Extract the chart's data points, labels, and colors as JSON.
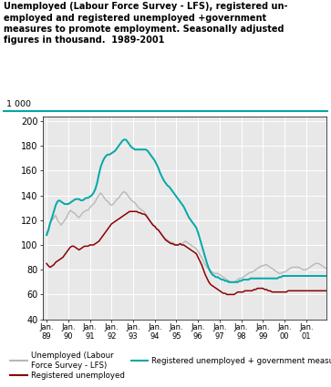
{
  "title_line1": "Unemployed (Labour Force Survey - LFS), registered un-",
  "title_line2": "employed and registered unemployed +government",
  "title_line3": "measures to promote employment. Seasonally adjusted",
  "title_line4": "figures in thousand.  1989-2001",
  "ylabel_top": "1 000",
  "ylim": [
    40,
    200
  ],
  "yticks": [
    40,
    60,
    80,
    100,
    120,
    140,
    160,
    180,
    200
  ],
  "xtick_labels": [
    "Jan.\n89",
    "Jan.\n90",
    "Jan.\n91",
    "Jan.\n92",
    "Jan.\n93",
    "Jan.\n94",
    "Jan.\n95",
    "Jan.\n96",
    "Jan.\n97",
    "Jan.\n98",
    "Jan.\n99",
    "Jan.\n00",
    "Jan.\n01"
  ],
  "colors": {
    "lfs": "#b8b8b8",
    "reg": "#8b0000",
    "reg_gov": "#00a8a8"
  },
  "lfs": [
    110,
    113,
    118,
    120,
    122,
    124,
    120,
    118,
    116,
    118,
    120,
    122,
    125,
    128,
    127,
    126,
    125,
    123,
    122,
    124,
    126,
    127,
    128,
    128,
    130,
    132,
    133,
    135,
    138,
    140,
    142,
    140,
    138,
    136,
    135,
    133,
    132,
    133,
    135,
    137,
    138,
    140,
    142,
    143,
    142,
    140,
    138,
    136,
    135,
    134,
    132,
    130,
    129,
    128,
    127,
    125,
    123,
    120,
    118,
    116,
    115,
    113,
    112,
    110,
    108,
    106,
    105,
    104,
    103,
    102,
    102,
    101,
    100,
    100,
    101,
    101,
    102,
    103,
    102,
    101,
    100,
    99,
    98,
    97,
    95,
    92,
    90,
    87,
    84,
    82,
    80,
    79,
    78,
    77,
    77,
    77,
    76,
    75,
    74,
    73,
    72,
    71,
    70,
    70,
    70,
    71,
    72,
    73,
    73,
    74,
    75,
    76,
    77,
    78,
    78,
    79,
    80,
    81,
    82,
    83,
    83,
    84,
    84,
    83,
    82,
    81,
    80,
    79,
    78,
    77,
    77,
    78,
    78,
    79,
    80,
    81,
    82,
    82,
    82,
    82,
    82,
    81,
    80,
    80,
    80,
    81,
    82,
    83,
    84,
    85,
    85,
    85,
    84,
    83,
    82,
    81
  ],
  "reg": [
    85,
    83,
    82,
    83,
    84,
    86,
    87,
    88,
    89,
    90,
    92,
    94,
    96,
    98,
    99,
    99,
    98,
    97,
    96,
    97,
    98,
    99,
    99,
    99,
    100,
    100,
    100,
    101,
    102,
    103,
    105,
    107,
    109,
    111,
    113,
    115,
    117,
    118,
    119,
    120,
    121,
    122,
    123,
    124,
    125,
    126,
    127,
    127,
    127,
    127,
    127,
    126,
    126,
    125,
    125,
    124,
    122,
    120,
    118,
    116,
    115,
    113,
    112,
    110,
    108,
    106,
    104,
    103,
    102,
    101,
    101,
    100,
    100,
    100,
    101,
    100,
    100,
    99,
    98,
    97,
    96,
    95,
    94,
    93,
    90,
    87,
    84,
    80,
    76,
    73,
    70,
    68,
    67,
    66,
    65,
    64,
    63,
    62,
    61,
    61,
    60,
    60,
    60,
    60,
    60,
    61,
    62,
    62,
    62,
    62,
    63,
    63,
    63,
    63,
    63,
    64,
    64,
    65,
    65,
    65,
    65,
    64,
    64,
    63,
    63,
    62,
    62,
    62,
    62,
    62,
    62,
    62,
    62,
    62,
    63,
    63,
    63,
    63,
    63,
    63,
    63,
    63,
    63,
    63,
    63,
    63,
    63,
    63,
    63,
    63,
    63,
    63,
    63,
    63,
    63,
    63
  ],
  "reg_gov": [
    108,
    112,
    118,
    122,
    127,
    132,
    135,
    136,
    135,
    134,
    133,
    133,
    133,
    134,
    135,
    136,
    137,
    137,
    137,
    136,
    136,
    137,
    138,
    138,
    139,
    140,
    142,
    145,
    150,
    157,
    163,
    167,
    170,
    172,
    173,
    173,
    174,
    175,
    176,
    178,
    180,
    182,
    184,
    185,
    185,
    183,
    181,
    179,
    178,
    177,
    177,
    177,
    177,
    177,
    177,
    177,
    176,
    174,
    172,
    170,
    168,
    165,
    162,
    158,
    155,
    152,
    150,
    148,
    147,
    145,
    143,
    141,
    139,
    137,
    135,
    133,
    131,
    128,
    125,
    122,
    120,
    118,
    116,
    114,
    110,
    105,
    100,
    95,
    90,
    85,
    81,
    78,
    76,
    75,
    74,
    74,
    73,
    72,
    72,
    71,
    71,
    70,
    70,
    70,
    70,
    70,
    70,
    71,
    71,
    72,
    72,
    72,
    72,
    73,
    73,
    73,
    73,
    73,
    73,
    73,
    73,
    73,
    73,
    73,
    73,
    73,
    73,
    73,
    73,
    74,
    74,
    75,
    75,
    75,
    75,
    75,
    75,
    75,
    75,
    75,
    75,
    75,
    75,
    75,
    75,
    75,
    75,
    75,
    75,
    75,
    75,
    75,
    75,
    75,
    75,
    75
  ]
}
